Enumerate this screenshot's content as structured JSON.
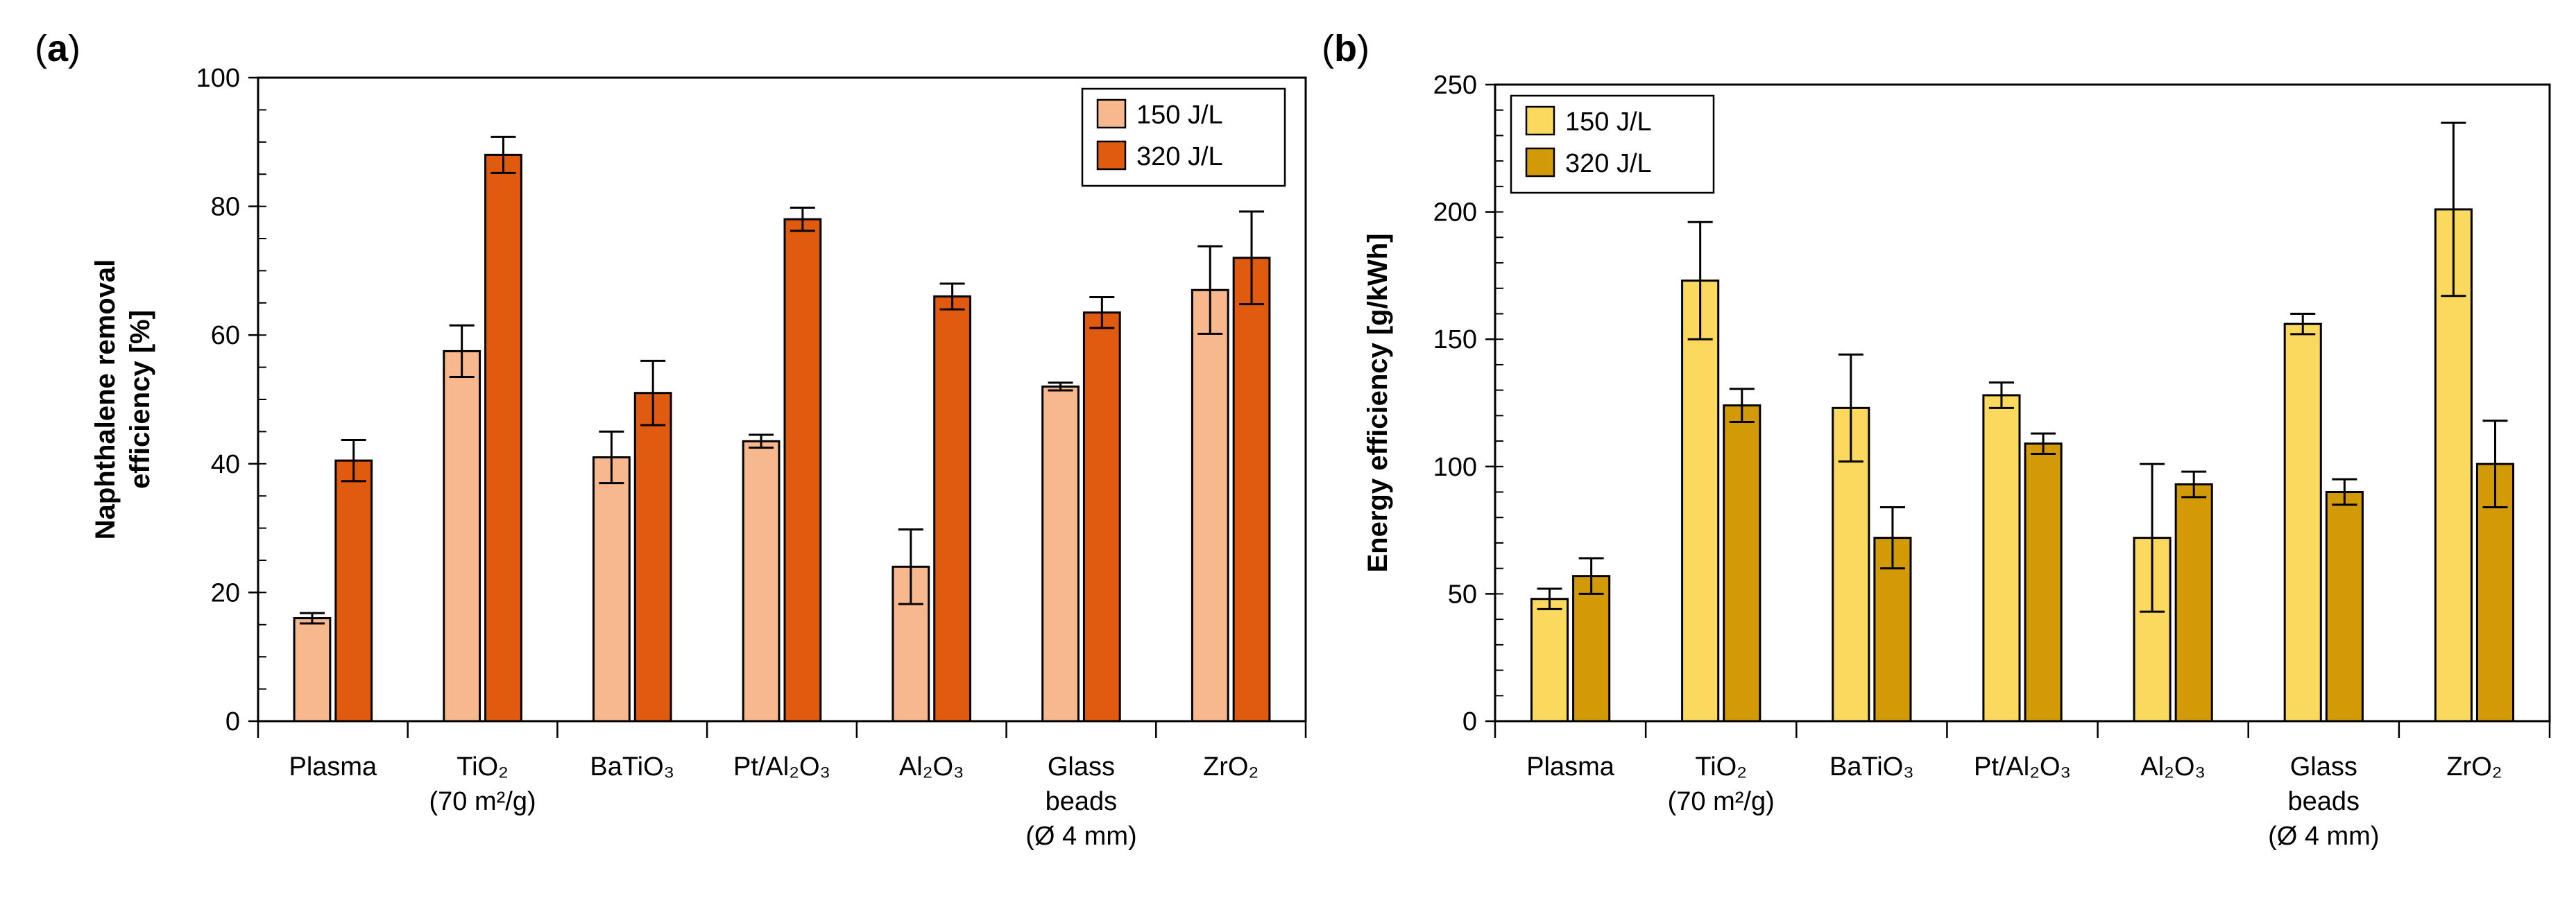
{
  "colors": {
    "a_150": "#f8b88e",
    "a_320": "#e05a10",
    "b_150": "#fbd95f",
    "b_320": "#d39a07",
    "stroke": "#000000"
  },
  "chart_data": [
    {
      "type": "bar",
      "panel_label": "(a)",
      "panel_label_parts": [
        "(",
        "a",
        ")"
      ],
      "categories": [
        "Plasma",
        "TiO₂ (70 m²/g)",
        "BaTiO₃",
        "Pt/Al₂O₃",
        "Al₂O₃",
        "Glass beads (Ø 4 mm)",
        "ZrO₂"
      ],
      "category_lines": [
        [
          "Plasma"
        ],
        [
          "TiO₂",
          "(70 m²/g)"
        ],
        [
          "BaTiO₃"
        ],
        [
          "Pt/Al₂O₃"
        ],
        [
          "Al₂O₃"
        ],
        [
          "Glass",
          "beads",
          "(Ø 4 mm)"
        ],
        [
          "ZrO₂"
        ]
      ],
      "ylabel": "Naphthalene removal efficiency [%]",
      "ylabel_lines": [
        "Naphthalene removal",
        "efficiency [%]"
      ],
      "ylim": [
        0,
        100
      ],
      "yticks": [
        0,
        20,
        40,
        60,
        80,
        100
      ],
      "minor_step": 5,
      "legend_position": "top-right",
      "series": [
        {
          "name": "150 J/L",
          "color_key": "a_150",
          "values": [
            16,
            57.5,
            41,
            43.5,
            24,
            52,
            67
          ],
          "errors": [
            0.8,
            4,
            4,
            1,
            5.8,
            0.6,
            6.8
          ]
        },
        {
          "name": "320 J/L",
          "color_key": "a_320",
          "values": [
            40.5,
            88,
            51,
            78,
            66,
            63.5,
            72
          ],
          "errors": [
            3.2,
            2.8,
            5,
            1.8,
            2,
            2.4,
            7.2
          ]
        }
      ]
    },
    {
      "type": "bar",
      "panel_label": "(b)",
      "panel_label_parts": [
        "(",
        "b",
        ")"
      ],
      "categories": [
        "Plasma",
        "TiO₂ (70 m²/g)",
        "BaTiO₃",
        "Pt/Al₂O₃",
        "Al₂O₃",
        "Glass beads (Ø 4 mm)",
        "ZrO₂"
      ],
      "category_lines": [
        [
          "Plasma"
        ],
        [
          "TiO₂",
          "(70 m²/g)"
        ],
        [
          "BaTiO₃"
        ],
        [
          "Pt/Al₂O₃"
        ],
        [
          "Al₂O₃"
        ],
        [
          "Glass",
          "beads",
          "(Ø 4 mm)"
        ],
        [
          "ZrO₂"
        ]
      ],
      "ylabel": "Energy efficiency [g/kWh]",
      "ylabel_lines": [
        "Energy efficiency [g/kWh]"
      ],
      "ylim": [
        0,
        250
      ],
      "yticks": [
        0,
        50,
        100,
        150,
        200,
        250
      ],
      "minor_step": 10,
      "legend_position": "top-left",
      "series": [
        {
          "name": "150 J/L",
          "color_key": "b_150",
          "values": [
            48,
            173,
            123,
            128,
            72,
            156,
            201
          ],
          "errors": [
            4,
            23,
            21,
            5,
            29,
            4,
            34
          ]
        },
        {
          "name": "320 J/L",
          "color_key": "b_320",
          "values": [
            57,
            124,
            72,
            109,
            93,
            90,
            101
          ],
          "errors": [
            7,
            6.5,
            12,
            4,
            5,
            5,
            17
          ]
        }
      ]
    }
  ]
}
